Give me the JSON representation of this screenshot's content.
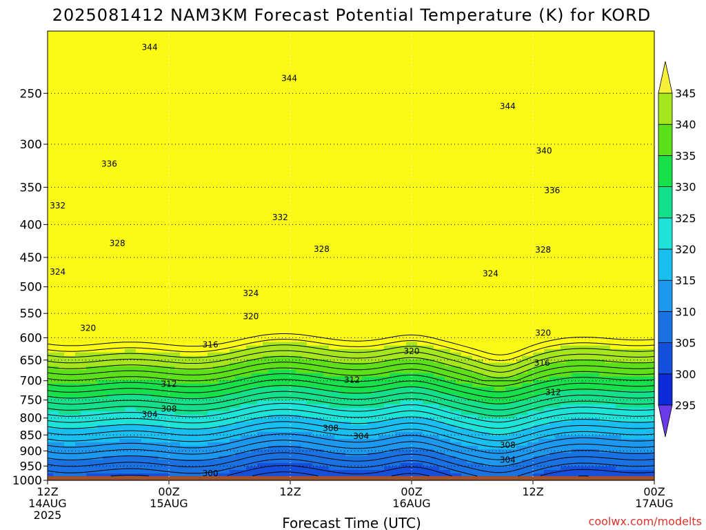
{
  "chart_data": {
    "type": "heatmap",
    "title": "2025081412 NAM3KM Forecast Potential Temperature (K) for KORD",
    "xlabel": "Forecast Time (UTC)",
    "ylabel": "",
    "credit": "coolwx.com/modelts",
    "y_scale": "log",
    "y_inverted": true,
    "ylim": [
      1000,
      200
    ],
    "y_ticks": [
      250,
      300,
      350,
      400,
      450,
      500,
      550,
      600,
      650,
      700,
      750,
      800,
      850,
      900,
      950,
      1000
    ],
    "x_range_hours": [
      0,
      60
    ],
    "x_ticks": [
      {
        "hour": 0,
        "line1": "12Z",
        "line2": "14AUG",
        "line3": "2025"
      },
      {
        "hour": 12,
        "line1": "00Z",
        "line2": "15AUG",
        "line3": ""
      },
      {
        "hour": 24,
        "line1": "12Z",
        "line2": "",
        "line3": ""
      },
      {
        "hour": 36,
        "line1": "00Z",
        "line2": "16AUG",
        "line3": ""
      },
      {
        "hour": 48,
        "line1": "12Z",
        "line2": "",
        "line3": ""
      },
      {
        "hour": 60,
        "line1": "00Z",
        "line2": "17AUG",
        "line3": ""
      }
    ],
    "grid": true,
    "ground_fill_below_hpa": 985,
    "colorbar": {
      "position": "right",
      "levels": [
        295,
        300,
        305,
        310,
        315,
        320,
        325,
        330,
        335,
        340,
        345
      ],
      "colors": [
        "#1a00e6",
        "#0a2bd6",
        "#1450dc",
        "#1a72e2",
        "#1c98ee",
        "#19bff0",
        "#1de3d8",
        "#14e08c",
        "#18e04a",
        "#5ce01a",
        "#a6e61c",
        "#fafa14"
      ],
      "below_color": "#6a3ce8",
      "above_color": "#f6f03a"
    },
    "contour_interval_K": 2,
    "contour_labels": [
      {
        "value": 344,
        "hour": 10.1,
        "hpa": 212
      },
      {
        "value": 344,
        "hour": 23.9,
        "hpa": 237
      },
      {
        "value": 344,
        "hour": 45.5,
        "hpa": 262
      },
      {
        "value": 340,
        "hour": 49.1,
        "hpa": 307
      },
      {
        "value": 336,
        "hour": 6.1,
        "hpa": 322
      },
      {
        "value": 336,
        "hour": 49.9,
        "hpa": 354
      },
      {
        "value": 332,
        "hour": 1.0,
        "hpa": 374
      },
      {
        "value": 332,
        "hour": 23.0,
        "hpa": 390
      },
      {
        "value": 328,
        "hour": 6.9,
        "hpa": 428
      },
      {
        "value": 328,
        "hour": 27.1,
        "hpa": 437
      },
      {
        "value": 328,
        "hour": 49.0,
        "hpa": 438
      },
      {
        "value": 324,
        "hour": 1.0,
        "hpa": 474
      },
      {
        "value": 324,
        "hour": 20.1,
        "hpa": 512
      },
      {
        "value": 324,
        "hour": 43.8,
        "hpa": 477
      },
      {
        "value": 320,
        "hour": 20.1,
        "hpa": 556
      },
      {
        "value": 320,
        "hour": 4.0,
        "hpa": 580
      },
      {
        "value": 320,
        "hour": 49.0,
        "hpa": 590
      },
      {
        "value": 320,
        "hour": 36.0,
        "hpa": 630
      },
      {
        "value": 316,
        "hour": 16.1,
        "hpa": 615
      },
      {
        "value": 316,
        "hour": 48.9,
        "hpa": 657
      },
      {
        "value": 312,
        "hour": 12.0,
        "hpa": 708
      },
      {
        "value": 312,
        "hour": 30.1,
        "hpa": 698
      },
      {
        "value": 312,
        "hour": 50.0,
        "hpa": 730
      },
      {
        "value": 308,
        "hour": 12.0,
        "hpa": 774
      },
      {
        "value": 308,
        "hour": 28.0,
        "hpa": 830
      },
      {
        "value": 308,
        "hour": 45.5,
        "hpa": 882
      },
      {
        "value": 304,
        "hour": 10.1,
        "hpa": 790
      },
      {
        "value": 304,
        "hour": 31.0,
        "hpa": 854
      },
      {
        "value": 304,
        "hour": 45.5,
        "hpa": 930
      },
      {
        "value": 300,
        "hour": 16.1,
        "hpa": 975
      }
    ]
  }
}
